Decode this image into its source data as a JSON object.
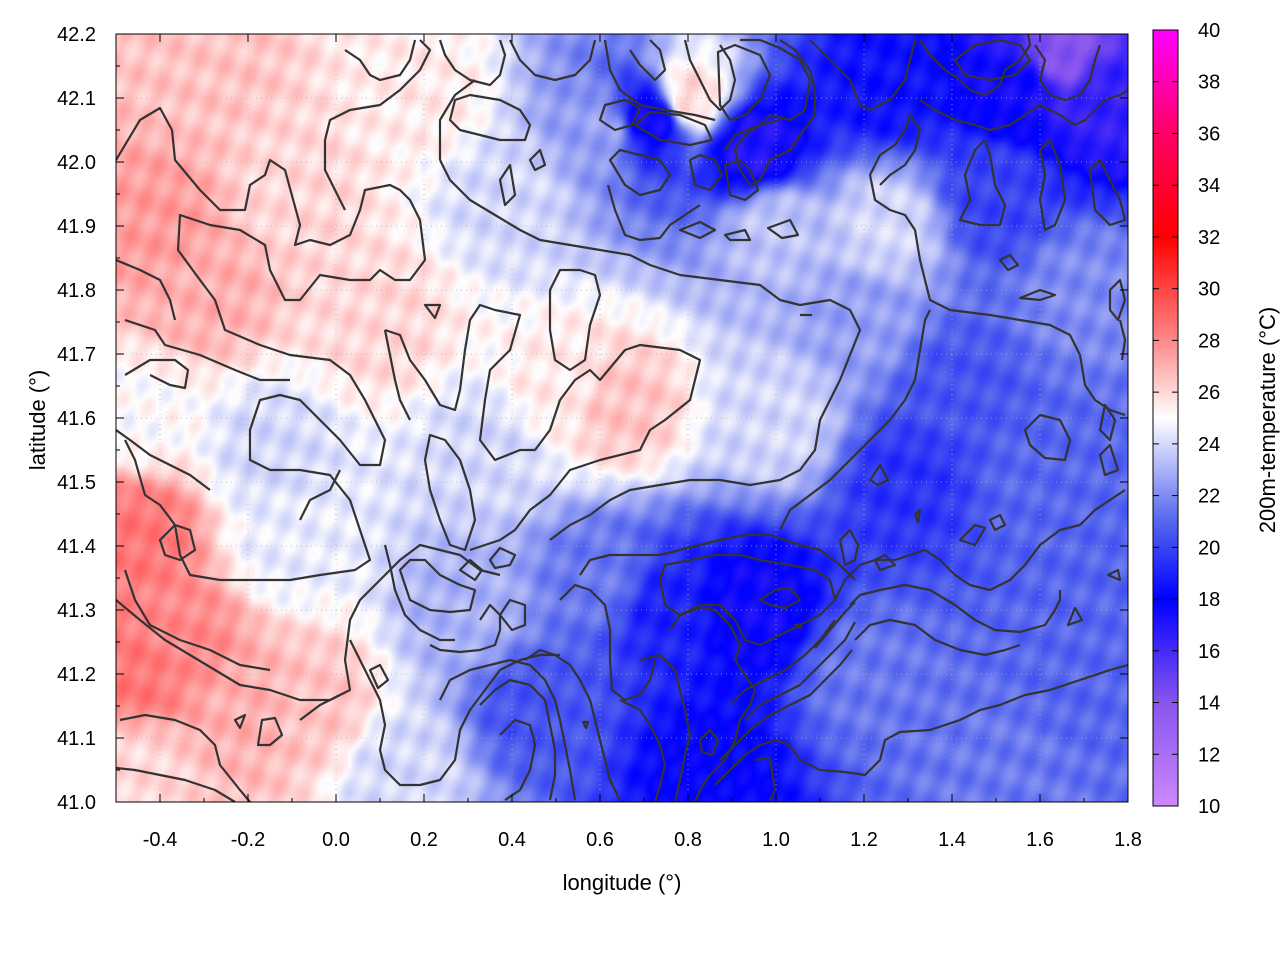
{
  "chart_data": {
    "type": "heatmap",
    "title": "",
    "xlabel": "longitude (°)",
    "ylabel": "latitude (°)",
    "colorbar_label": "200m-temperature (°C)",
    "xlim": [
      -0.5,
      1.8
    ],
    "ylim": [
      41.0,
      42.2
    ],
    "color_range": [
      10,
      40
    ],
    "x_ticks": [
      "-0.4",
      "-0.2",
      "0.0",
      "0.2",
      "0.4",
      "0.6",
      "0.8",
      "1.0",
      "1.2",
      "1.4",
      "1.6",
      "1.8"
    ],
    "x_tick_values": [
      -0.4,
      -0.2,
      0.0,
      0.2,
      0.4,
      0.6,
      0.8,
      1.0,
      1.2,
      1.4,
      1.6,
      1.8
    ],
    "y_ticks": [
      "41.0",
      "41.1",
      "41.2",
      "41.3",
      "41.4",
      "41.5",
      "41.6",
      "41.7",
      "41.8",
      "41.9",
      "42.0",
      "42.1",
      "42.2"
    ],
    "y_tick_values": [
      41.0,
      41.1,
      41.2,
      41.3,
      41.4,
      41.5,
      41.6,
      41.7,
      41.8,
      41.9,
      42.0,
      42.1,
      42.2
    ],
    "colorbar_ticks": [
      "10",
      "12",
      "14",
      "16",
      "18",
      "20",
      "22",
      "24",
      "26",
      "28",
      "30",
      "32",
      "34",
      "36",
      "38",
      "40"
    ],
    "colorbar_tick_values": [
      10,
      12,
      14,
      16,
      18,
      20,
      22,
      24,
      26,
      28,
      30,
      32,
      34,
      36,
      38,
      40
    ],
    "colormap": [
      {
        "value": 10,
        "color": "#cc88ff"
      },
      {
        "value": 14,
        "color": "#8855ee"
      },
      {
        "value": 18,
        "color": "#0000ff"
      },
      {
        "value": 21,
        "color": "#5566ee"
      },
      {
        "value": 25,
        "color": "#ffffff"
      },
      {
        "value": 28,
        "color": "#ff8888"
      },
      {
        "value": 32,
        "color": "#ff0000"
      },
      {
        "value": 36,
        "color": "#ff0066"
      },
      {
        "value": 40,
        "color": "#ff00ff"
      }
    ],
    "field_samples": [
      {
        "lon": -0.45,
        "lat": 41.2,
        "temp": 28.5
      },
      {
        "lon": -0.45,
        "lat": 41.42,
        "temp": 28.5
      },
      {
        "lon": -0.35,
        "lat": 41.25,
        "temp": 28.0
      },
      {
        "lon": -0.2,
        "lat": 41.15,
        "temp": 27.0
      },
      {
        "lon": -0.05,
        "lat": 41.15,
        "temp": 26.5
      },
      {
        "lon": -0.4,
        "lat": 41.9,
        "temp": 27.5
      },
      {
        "lon": -0.3,
        "lat": 41.8,
        "temp": 27.0
      },
      {
        "lon": -0.3,
        "lat": 42.15,
        "temp": 26.5
      },
      {
        "lon": -0.1,
        "lat": 41.95,
        "temp": 26.0
      },
      {
        "lon": 0.1,
        "lat": 41.75,
        "temp": 26.0
      },
      {
        "lon": 0.2,
        "lat": 42.1,
        "temp": 25.5
      },
      {
        "lon": 0.5,
        "lat": 41.65,
        "temp": 25.5
      },
      {
        "lon": 0.65,
        "lat": 41.62,
        "temp": 26.5
      },
      {
        "lon": 0.8,
        "lat": 42.1,
        "temp": 26.0
      },
      {
        "lon": -0.15,
        "lat": 41.55,
        "temp": 24.0
      },
      {
        "lon": -0.1,
        "lat": 41.4,
        "temp": 24.5
      },
      {
        "lon": 0.3,
        "lat": 41.3,
        "temp": 23.0
      },
      {
        "lon": 0.15,
        "lat": 41.05,
        "temp": 24.0
      },
      {
        "lon": 0.45,
        "lat": 41.15,
        "temp": 20.5
      },
      {
        "lon": 0.6,
        "lat": 41.35,
        "temp": 21.5
      },
      {
        "lon": 0.85,
        "lat": 41.05,
        "temp": 18.0
      },
      {
        "lon": 0.95,
        "lat": 41.3,
        "temp": 17.5
      },
      {
        "lon": 0.75,
        "lat": 41.3,
        "temp": 19.0
      },
      {
        "lon": 1.2,
        "lat": 41.2,
        "temp": 21.5
      },
      {
        "lon": 1.5,
        "lat": 41.05,
        "temp": 21.5
      },
      {
        "lon": 1.7,
        "lat": 41.2,
        "temp": 21.0
      },
      {
        "lon": 1.3,
        "lat": 41.5,
        "temp": 19.5
      },
      {
        "lon": 1.4,
        "lat": 41.65,
        "temp": 20.5
      },
      {
        "lon": 1.6,
        "lat": 41.5,
        "temp": 21.0
      },
      {
        "lon": 1.7,
        "lat": 41.8,
        "temp": 22.0
      },
      {
        "lon": 1.2,
        "lat": 41.75,
        "temp": 22.5
      },
      {
        "lon": 1.0,
        "lat": 41.6,
        "temp": 24.0
      },
      {
        "lon": 1.25,
        "lat": 41.9,
        "temp": 24.0
      },
      {
        "lon": 1.0,
        "lat": 41.9,
        "temp": 23.5
      },
      {
        "lon": 0.6,
        "lat": 42.05,
        "temp": 22.5
      },
      {
        "lon": 0.72,
        "lat": 42.07,
        "temp": 17.5
      },
      {
        "lon": 0.95,
        "lat": 42.02,
        "temp": 17.0
      },
      {
        "lon": 1.25,
        "lat": 42.12,
        "temp": 18.5
      },
      {
        "lon": 1.55,
        "lat": 42.12,
        "temp": 17.5
      },
      {
        "lon": 1.65,
        "lat": 42.17,
        "temp": 14.0
      },
      {
        "lon": 1.75,
        "lat": 42.1,
        "temp": 16.5
      },
      {
        "lon": 1.5,
        "lat": 41.95,
        "temp": 20.0
      },
      {
        "lon": 0.4,
        "lat": 41.95,
        "temp": 24.0
      },
      {
        "lon": 0.35,
        "lat": 41.55,
        "temp": 24.0
      },
      {
        "lon": -0.45,
        "lat": 41.6,
        "temp": 25.0
      },
      {
        "lon": -0.45,
        "lat": 41.05,
        "temp": 26.0
      }
    ]
  }
}
